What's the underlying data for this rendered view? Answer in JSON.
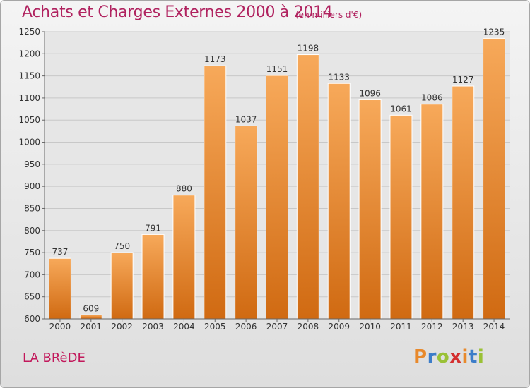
{
  "header": {
    "title": "Achats et Charges Externes 2000 à 2014",
    "subtitle": "(en milliers d'€)"
  },
  "footer": {
    "commune": "LA BRèDE",
    "brand": "Proxiti",
    "brand_colors": [
      "#e8892b",
      "#3c7dc9",
      "#9ac136",
      "#d42f2f",
      "#e8892b",
      "#3c7dc9",
      "#9ac136"
    ]
  },
  "colors": {
    "title": "#b0225f",
    "bar_light": "#f7a95a",
    "bar_dark": "#d06a12",
    "grid": "#c8c8c8"
  },
  "chart_data": {
    "type": "bar",
    "title": "Achats et Charges Externes 2000 à 2014",
    "subtitle": "(en milliers d'€)",
    "xlabel": "",
    "ylabel": "",
    "categories": [
      "2000",
      "2001",
      "2002",
      "2003",
      "2004",
      "2005",
      "2006",
      "2007",
      "2008",
      "2009",
      "2010",
      "2011",
      "2012",
      "2013",
      "2014"
    ],
    "values": [
      737,
      609,
      750,
      791,
      880,
      1173,
      1037,
      1151,
      1198,
      1133,
      1096,
      1061,
      1086,
      1127,
      1235
    ],
    "ylim": [
      600,
      1250
    ],
    "yticks": [
      600,
      650,
      700,
      750,
      800,
      850,
      900,
      950,
      1000,
      1050,
      1100,
      1150,
      1200,
      1250
    ],
    "grid": true,
    "data_labels": true
  }
}
